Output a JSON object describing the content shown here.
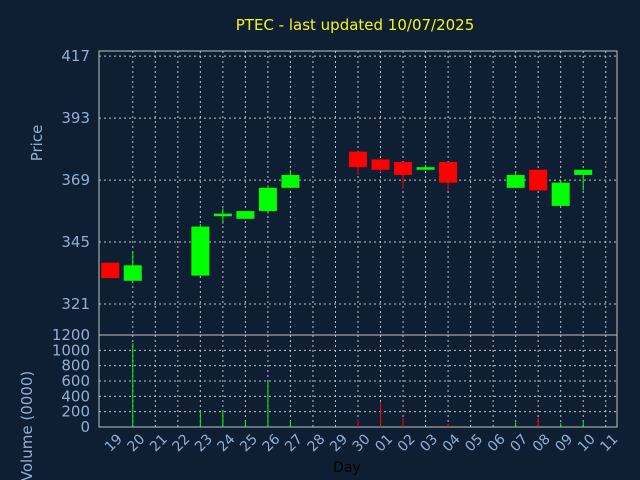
{
  "chart_data": [
    {
      "type": "candlestick",
      "title": "PTEC - last updated 10/07/2025",
      "ylabel": "Price",
      "xlabel": "Day",
      "ylim": [
        309,
        419
      ],
      "yticks": [
        417,
        393,
        369,
        345,
        321
      ],
      "grid": true,
      "x": [
        "19",
        "20",
        "21",
        "22",
        "23",
        "24",
        "25",
        "26",
        "27",
        "28",
        "29",
        "30",
        "01",
        "02",
        "03",
        "04",
        "05",
        "06",
        "07",
        "08",
        "09",
        "10",
        "11"
      ],
      "candles": [
        {
          "day": "19",
          "open": 337,
          "high": 337,
          "low": 331,
          "close": 331
        },
        {
          "day": "20",
          "open": 330,
          "high": 341,
          "low": 330,
          "close": 336
        },
        {
          "day": "23",
          "open": 332,
          "high": 352,
          "low": 332,
          "close": 351
        },
        {
          "day": "24",
          "open": 355,
          "high": 358,
          "low": 352,
          "close": 356
        },
        {
          "day": "25",
          "open": 354,
          "high": 357,
          "low": 354,
          "close": 357
        },
        {
          "day": "26",
          "open": 357,
          "high": 367,
          "low": 356,
          "close": 366
        },
        {
          "day": "27",
          "open": 366,
          "high": 373,
          "low": 366,
          "close": 371
        },
        {
          "day": "30",
          "open": 380,
          "high": 380,
          "low": 371,
          "close": 374
        },
        {
          "day": "01",
          "open": 377,
          "high": 377,
          "low": 372,
          "close": 373
        },
        {
          "day": "02",
          "open": 376,
          "high": 376,
          "low": 366,
          "close": 371
        },
        {
          "day": "03",
          "open": 373,
          "high": 375,
          "low": 373,
          "close": 374
        },
        {
          "day": "04",
          "open": 376,
          "high": 376,
          "low": 365,
          "close": 368
        },
        {
          "day": "07",
          "open": 366,
          "high": 372,
          "low": 366,
          "close": 371
        },
        {
          "day": "08",
          "open": 373,
          "high": 373,
          "low": 365,
          "close": 365
        },
        {
          "day": "09",
          "open": 359,
          "high": 369,
          "low": 359,
          "close": 368
        },
        {
          "day": "10",
          "open": 371,
          "high": 373,
          "low": 365,
          "close": 373
        }
      ],
      "colors": {
        "up": "#00ff00",
        "down": "#ff0000",
        "background": "#0f1f33",
        "grid": "#c0c0c0",
        "text": "#8fb0d6",
        "title": "#f5f51e"
      }
    },
    {
      "type": "bar",
      "ylabel": "Volume (0000)",
      "ylim": [
        0,
        1200
      ],
      "yticks": [
        1200,
        1000,
        800,
        600,
        400,
        200,
        0
      ],
      "grid": true,
      "x": [
        "19",
        "20",
        "21",
        "22",
        "23",
        "24",
        "25",
        "26",
        "27",
        "28",
        "29",
        "30",
        "01",
        "02",
        "03",
        "04",
        "05",
        "06",
        "07",
        "08",
        "09",
        "10",
        "11"
      ],
      "bars": [
        {
          "day": "20",
          "value": 1090,
          "direction": "up"
        },
        {
          "day": "23",
          "value": 210,
          "direction": "up"
        },
        {
          "day": "24",
          "value": 220,
          "direction": "up"
        },
        {
          "day": "25",
          "value": 80,
          "direction": "up"
        },
        {
          "day": "26",
          "value": 590,
          "direction": "up"
        },
        {
          "day": "27",
          "value": 80,
          "direction": "up"
        },
        {
          "day": "30",
          "value": 90,
          "direction": "down"
        },
        {
          "day": "01",
          "value": 330,
          "direction": "down"
        },
        {
          "day": "02",
          "value": 120,
          "direction": "down"
        },
        {
          "day": "04",
          "value": 40,
          "direction": "down"
        },
        {
          "day": "07",
          "value": 60,
          "direction": "up"
        },
        {
          "day": "08",
          "value": 120,
          "direction": "down"
        },
        {
          "day": "09",
          "value": 50,
          "direction": "up"
        },
        {
          "day": "10",
          "value": 80,
          "direction": "up"
        }
      ]
    }
  ]
}
